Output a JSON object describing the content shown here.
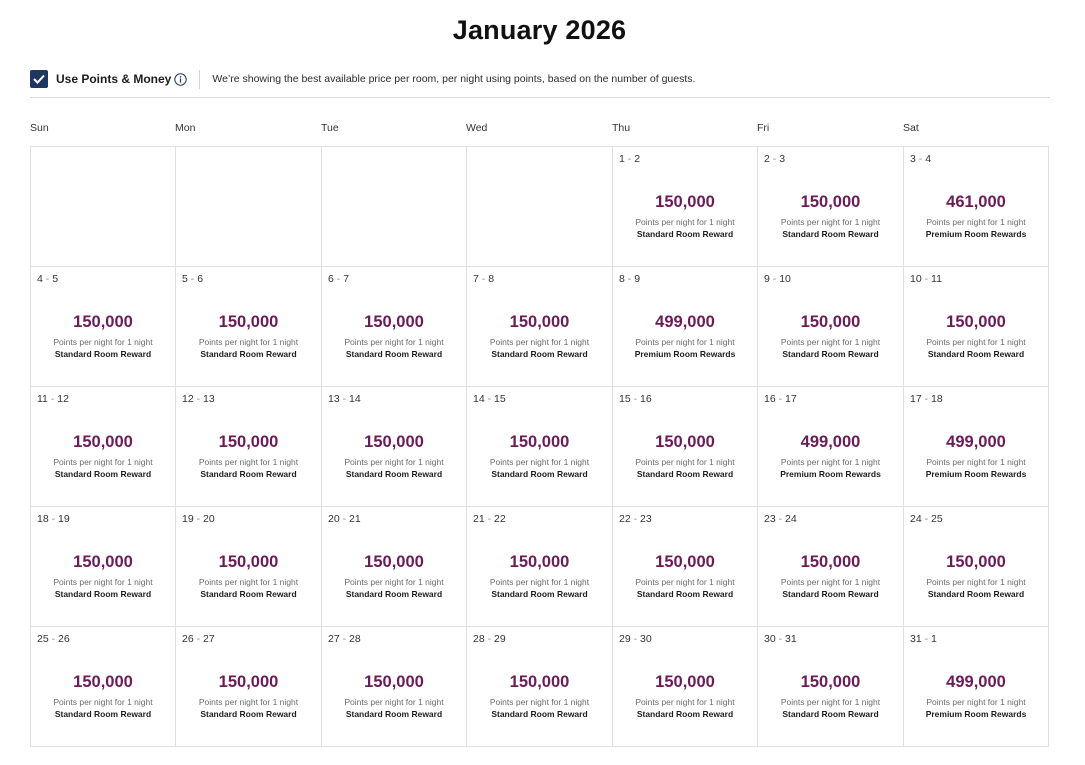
{
  "title": "January 2026",
  "toolbar": {
    "checkbox_checked": true,
    "toggle_label": "Use Points & Money",
    "info_icon": "info-icon",
    "note": "We’re showing the best available price per room, per night using points, based on the number of guests."
  },
  "weekdays": [
    "Sun",
    "Mon",
    "Tue",
    "Wed",
    "Thu",
    "Fri",
    "Sat"
  ],
  "colors": {
    "price": "#6b1c57",
    "checkbox": "#1e3762",
    "grid_line": "#e0e0e0"
  },
  "per_night_label": "Points per night for 1 night",
  "weeks": [
    [
      null,
      null,
      null,
      null,
      {
        "start": "1",
        "end": "2",
        "points": "150,000",
        "room": "Standard Room Reward"
      },
      {
        "start": "2",
        "end": "3",
        "points": "150,000",
        "room": "Standard Room Reward"
      },
      {
        "start": "3",
        "end": "4",
        "points": "461,000",
        "room": "Premium Room Rewards"
      }
    ],
    [
      {
        "start": "4",
        "end": "5",
        "points": "150,000",
        "room": "Standard Room Reward"
      },
      {
        "start": "5",
        "end": "6",
        "points": "150,000",
        "room": "Standard Room Reward"
      },
      {
        "start": "6",
        "end": "7",
        "points": "150,000",
        "room": "Standard Room Reward"
      },
      {
        "start": "7",
        "end": "8",
        "points": "150,000",
        "room": "Standard Room Reward"
      },
      {
        "start": "8",
        "end": "9",
        "points": "499,000",
        "room": "Premium Room Rewards"
      },
      {
        "start": "9",
        "end": "10",
        "points": "150,000",
        "room": "Standard Room Reward"
      },
      {
        "start": "10",
        "end": "11",
        "points": "150,000",
        "room": "Standard Room Reward"
      }
    ],
    [
      {
        "start": "11",
        "end": "12",
        "points": "150,000",
        "room": "Standard Room Reward"
      },
      {
        "start": "12",
        "end": "13",
        "points": "150,000",
        "room": "Standard Room Reward"
      },
      {
        "start": "13",
        "end": "14",
        "points": "150,000",
        "room": "Standard Room Reward"
      },
      {
        "start": "14",
        "end": "15",
        "points": "150,000",
        "room": "Standard Room Reward"
      },
      {
        "start": "15",
        "end": "16",
        "points": "150,000",
        "room": "Standard Room Reward"
      },
      {
        "start": "16",
        "end": "17",
        "points": "499,000",
        "room": "Premium Room Rewards"
      },
      {
        "start": "17",
        "end": "18",
        "points": "499,000",
        "room": "Premium Room Rewards"
      }
    ],
    [
      {
        "start": "18",
        "end": "19",
        "points": "150,000",
        "room": "Standard Room Reward"
      },
      {
        "start": "19",
        "end": "20",
        "points": "150,000",
        "room": "Standard Room Reward"
      },
      {
        "start": "20",
        "end": "21",
        "points": "150,000",
        "room": "Standard Room Reward"
      },
      {
        "start": "21",
        "end": "22",
        "points": "150,000",
        "room": "Standard Room Reward"
      },
      {
        "start": "22",
        "end": "23",
        "points": "150,000",
        "room": "Standard Room Reward"
      },
      {
        "start": "23",
        "end": "24",
        "points": "150,000",
        "room": "Standard Room Reward"
      },
      {
        "start": "24",
        "end": "25",
        "points": "150,000",
        "room": "Standard Room Reward"
      }
    ],
    [
      {
        "start": "25",
        "end": "26",
        "points": "150,000",
        "room": "Standard Room Reward"
      },
      {
        "start": "26",
        "end": "27",
        "points": "150,000",
        "room": "Standard Room Reward"
      },
      {
        "start": "27",
        "end": "28",
        "points": "150,000",
        "room": "Standard Room Reward"
      },
      {
        "start": "28",
        "end": "29",
        "points": "150,000",
        "room": "Standard Room Reward"
      },
      {
        "start": "29",
        "end": "30",
        "points": "150,000",
        "room": "Standard Room Reward"
      },
      {
        "start": "30",
        "end": "31",
        "points": "150,000",
        "room": "Standard Room Reward"
      },
      {
        "start": "31",
        "end": "1",
        "points": "499,000",
        "room": "Premium Room Rewards"
      }
    ]
  ]
}
